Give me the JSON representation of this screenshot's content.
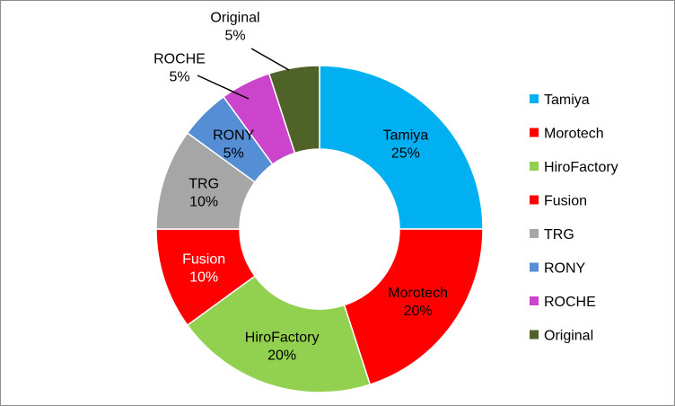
{
  "chart_data": {
    "type": "pie",
    "donut": true,
    "slices": [
      {
        "name": "Tamiya",
        "value": 25,
        "label": "25%",
        "color": "#00B0F0",
        "label_color": "#000000"
      },
      {
        "name": "Morotech",
        "value": 20,
        "label": "20%",
        "color": "#FF0000",
        "label_color": "#000000"
      },
      {
        "name": "HiroFactory",
        "value": 20,
        "label": "20%",
        "color": "#92D050",
        "label_color": "#000000"
      },
      {
        "name": "Fusion",
        "value": 10,
        "label": "10%",
        "color": "#FF0000",
        "label_color": "#FFFFFF"
      },
      {
        "name": "TRG",
        "value": 10,
        "label": "10%",
        "color": "#A6A6A6",
        "label_color": "#000000"
      },
      {
        "name": "RONY",
        "value": 5,
        "label": "5%",
        "color": "#558ED5",
        "label_color": "#000000"
      },
      {
        "name": "ROCHE",
        "value": 5,
        "label": "5%",
        "color": "#CC44CC",
        "label_color": "#000000"
      },
      {
        "name": "Original",
        "value": 5,
        "label": "5%",
        "color": "#4F6228",
        "label_color": "#000000"
      }
    ],
    "legend_position": "right"
  }
}
